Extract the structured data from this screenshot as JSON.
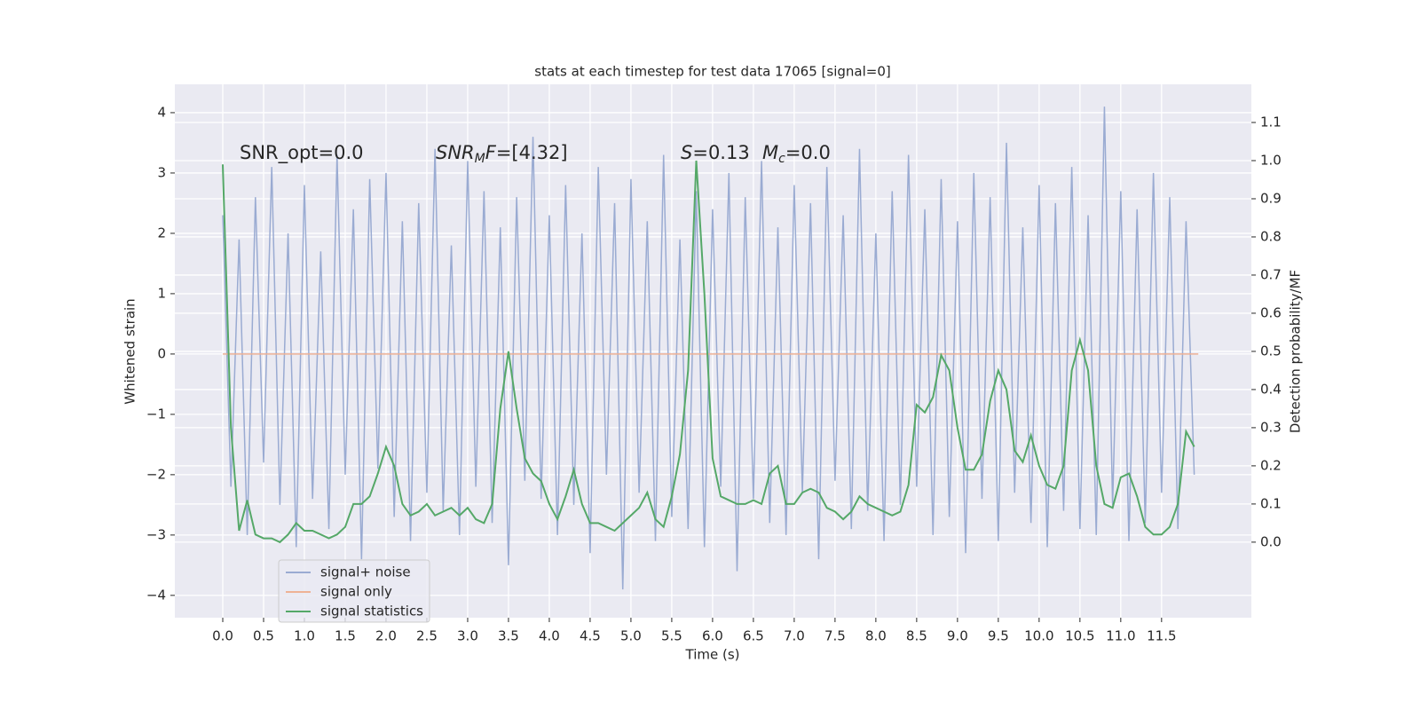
{
  "chart_data": {
    "type": "line",
    "title": "stats at each timestep for test data 17065 [signal=0]",
    "x_label": "Time (s)",
    "y_label": "Whitened strain",
    "y2_label": "Detection probability/MF",
    "grid": true,
    "legend": "lower left",
    "xlim": [
      -0.587,
      12.6
    ],
    "ylim": [
      -4.37,
      4.47
    ],
    "y2lim": [
      -0.198,
      1.2
    ],
    "xticks": [
      {
        "value": 0,
        "label": "0.0"
      },
      0.5,
      {
        "value": 1,
        "label": "1.0"
      },
      1.5,
      {
        "value": 2,
        "label": "2.0"
      },
      2.5,
      {
        "value": 3,
        "label": "3.0"
      },
      3.5,
      {
        "value": 4,
        "label": "4.0"
      },
      4.5,
      {
        "value": 5,
        "label": "5.0"
      },
      5.5,
      {
        "value": 6,
        "label": "6.0"
      },
      6.5,
      {
        "value": 7,
        "label": "7.0"
      },
      7.5,
      {
        "value": 8,
        "label": "8.0"
      },
      8.5,
      {
        "value": 9,
        "label": "9.0"
      },
      9.5,
      {
        "value": 10,
        "label": "10.0"
      },
      10.5,
      {
        "value": 11,
        "label": "11.0"
      },
      11.5
    ],
    "yticks": [
      {
        "value": -4,
        "label": "−4"
      },
      {
        "value": -3,
        "label": "−3"
      },
      {
        "value": -2,
        "label": "−2"
      },
      {
        "value": -1,
        "label": "−1"
      },
      0,
      1,
      2,
      3,
      4
    ],
    "y2ticks": [
      {
        "value": 0,
        "label": "0.0"
      },
      0.1,
      0.2,
      0.3,
      0.4,
      0.5,
      0.6,
      0.7,
      0.8,
      0.9,
      {
        "value": 1,
        "label": "1.0"
      },
      1.1
    ],
    "annotations": [
      [
        {
          "text": "SNR_opt=0.0",
          "style": "normal"
        }
      ],
      [
        {
          "text": "SNR",
          "style": "italic"
        },
        {
          "text": "M",
          "style": "sub"
        },
        {
          "text": "F",
          "style": "italic"
        },
        {
          "text": "=[4.32]",
          "style": "normal"
        }
      ],
      [
        {
          "text": "S",
          "style": "italic"
        },
        {
          "text": "=0.13",
          "style": "normal"
        }
      ],
      [
        {
          "text": "M",
          "style": "italic"
        },
        {
          "text": "c",
          "style": "sub"
        },
        {
          "text": "=0.0",
          "style": "normal"
        }
      ]
    ],
    "x": [
      0,
      0.1,
      0.2,
      0.3,
      0.4,
      0.5,
      0.6,
      0.7,
      0.8,
      0.9,
      1,
      1.1,
      1.2,
      1.3,
      1.4,
      1.5,
      1.6,
      1.7,
      1.8,
      1.9,
      2,
      2.1,
      2.2,
      2.3,
      2.4,
      2.5,
      2.6,
      2.7,
      2.8,
      2.9,
      3,
      3.1,
      3.2,
      3.3,
      3.4,
      3.5,
      3.6,
      3.7,
      3.8,
      3.9,
      4,
      4.1,
      4.2,
      4.3,
      4.4,
      4.5,
      4.6,
      4.7,
      4.8,
      4.9,
      5,
      5.1,
      5.2,
      5.3,
      5.4,
      5.5,
      5.6,
      5.7,
      5.8,
      5.9,
      6,
      6.1,
      6.2,
      6.3,
      6.4,
      6.5,
      6.6,
      6.7,
      6.8,
      6.9,
      7,
      7.1,
      7.2,
      7.3,
      7.4,
      7.5,
      7.6,
      7.7,
      7.8,
      7.9,
      8,
      8.1,
      8.2,
      8.3,
      8.4,
      8.5,
      8.6,
      8.7,
      8.8,
      8.9,
      9,
      9.1,
      9.2,
      9.3,
      9.4,
      9.5,
      9.6,
      9.7,
      9.8,
      9.9,
      10,
      10.1,
      10.2,
      10.3,
      10.4,
      10.5,
      10.6,
      10.7,
      10.8,
      10.9,
      11,
      11.1,
      11.2,
      11.3,
      11.4,
      11.5,
      11.6,
      11.7,
      11.8,
      11.9
    ],
    "series": [
      {
        "name": "signal+ noise",
        "color": "#9aabd2",
        "axis": "y",
        "values": [
          2.3,
          -2.2,
          1.9,
          -3.0,
          2.6,
          -1.8,
          3.1,
          -2.5,
          2.0,
          -3.2,
          2.8,
          -2.4,
          1.7,
          -2.9,
          3.3,
          -2.0,
          2.4,
          -3.4,
          2.9,
          -1.9,
          3.0,
          -2.7,
          2.2,
          -3.1,
          2.5,
          -2.3,
          3.4,
          -2.6,
          1.8,
          -3.0,
          3.2,
          -2.2,
          2.7,
          -2.8,
          2.1,
          -3.5,
          2.6,
          -2.1,
          3.6,
          -2.4,
          2.3,
          -3.0,
          2.8,
          -2.5,
          2.0,
          -3.3,
          3.1,
          -2.0,
          2.5,
          -3.9,
          2.9,
          -2.3,
          2.2,
          -3.1,
          3.3,
          -2.7,
          1.9,
          -2.9,
          2.7,
          -3.2,
          2.4,
          -2.2,
          3.0,
          -3.6,
          2.6,
          -2.4,
          3.2,
          -2.8,
          2.1,
          -3.0,
          2.8,
          -2.3,
          2.5,
          -3.4,
          3.1,
          -2.1,
          2.3,
          -2.9,
          3.4,
          -2.6,
          2.0,
          -3.1,
          2.7,
          -2.5,
          3.3,
          -2.2,
          2.4,
          -3.0,
          2.9,
          -2.7,
          2.2,
          -3.3,
          3.0,
          -2.4,
          2.6,
          -3.1,
          3.5,
          -2.3,
          2.1,
          -2.8,
          2.8,
          -3.2,
          2.5,
          -2.6,
          3.1,
          -2.9,
          2.3,
          -3.0,
          4.1,
          -2.5,
          2.7,
          -3.1,
          2.4,
          -2.8,
          3.0,
          -2.3,
          2.6,
          -2.9,
          2.2,
          -2.0
        ]
      },
      {
        "name": "signal only",
        "color": "#eeb295",
        "axis": "y",
        "x": [
          0,
          11.95
        ],
        "values": [
          0,
          0
        ]
      },
      {
        "name": "signal statistics",
        "color": "#55a868",
        "axis": "y2",
        "values": [
          0.99,
          0.3,
          0.03,
          0.11,
          0.02,
          0.01,
          0.01,
          0.0,
          0.02,
          0.05,
          0.03,
          0.03,
          0.02,
          0.01,
          0.02,
          0.04,
          0.1,
          0.1,
          0.12,
          0.18,
          0.25,
          0.2,
          0.1,
          0.07,
          0.08,
          0.1,
          0.07,
          0.08,
          0.09,
          0.07,
          0.09,
          0.06,
          0.05,
          0.1,
          0.35,
          0.5,
          0.35,
          0.22,
          0.18,
          0.16,
          0.1,
          0.06,
          0.12,
          0.19,
          0.1,
          0.05,
          0.05,
          0.04,
          0.03,
          0.05,
          0.07,
          0.09,
          0.13,
          0.06,
          0.04,
          0.12,
          0.23,
          0.45,
          1.0,
          0.65,
          0.22,
          0.12,
          0.11,
          0.1,
          0.1,
          0.11,
          0.1,
          0.18,
          0.2,
          0.1,
          0.1,
          0.13,
          0.14,
          0.13,
          0.09,
          0.08,
          0.06,
          0.08,
          0.12,
          0.1,
          0.09,
          0.08,
          0.07,
          0.08,
          0.15,
          0.36,
          0.34,
          0.38,
          0.49,
          0.45,
          0.3,
          0.19,
          0.19,
          0.23,
          0.37,
          0.45,
          0.4,
          0.24,
          0.21,
          0.28,
          0.2,
          0.15,
          0.14,
          0.2,
          0.45,
          0.53,
          0.45,
          0.2,
          0.1,
          0.09,
          0.17,
          0.18,
          0.12,
          0.04,
          0.02,
          0.02,
          0.04,
          0.1,
          0.29,
          0.25
        ]
      }
    ]
  }
}
